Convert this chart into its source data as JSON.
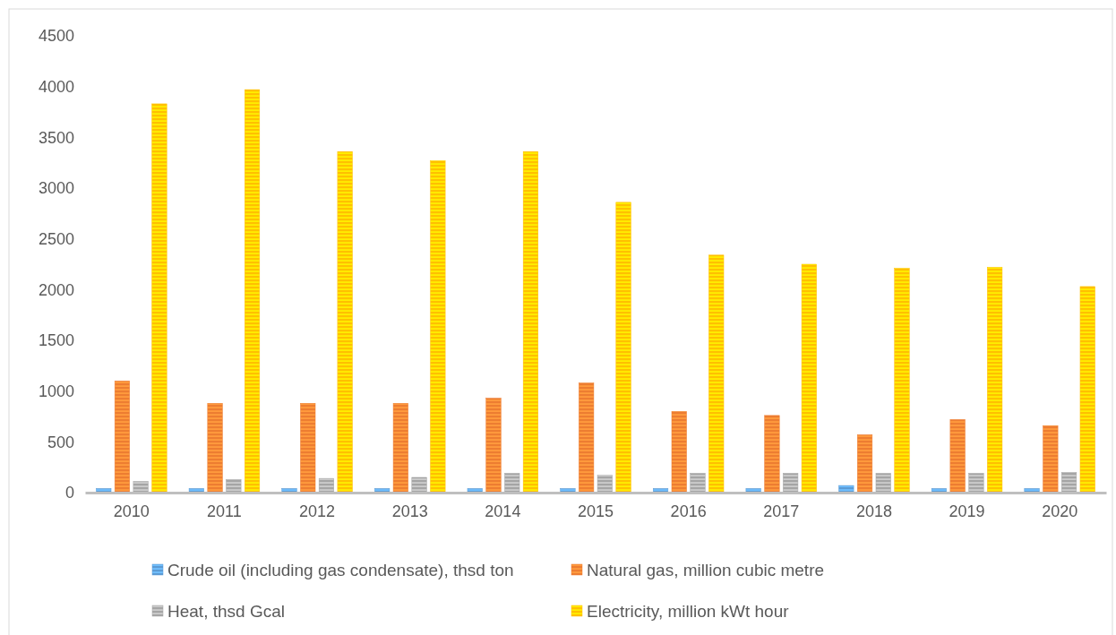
{
  "chart_data": {
    "type": "bar",
    "categories": [
      "2010",
      "2011",
      "2012",
      "2013",
      "2014",
      "2015",
      "2016",
      "2017",
      "2018",
      "2019",
      "2020"
    ],
    "series": [
      {
        "name": "Crude oil (including gas condensate), thsd ton",
        "color": "#5b9bd5",
        "values": [
          40,
          40,
          40,
          40,
          40,
          40,
          40,
          40,
          70,
          40,
          40
        ]
      },
      {
        "name": "Natural gas, million cubic metre",
        "color": "#ed7d31",
        "values": [
          1100,
          880,
          880,
          880,
          930,
          1080,
          800,
          760,
          570,
          720,
          660
        ]
      },
      {
        "name": "Heat, thsd  Gcal",
        "color": "#a5a5a5",
        "values": [
          110,
          130,
          140,
          150,
          190,
          170,
          190,
          190,
          190,
          190,
          200
        ]
      },
      {
        "name": "Electricity, million kWt hour",
        "color": "#ffc000",
        "values": [
          3830,
          3970,
          3360,
          3270,
          3360,
          2860,
          2340,
          2250,
          2210,
          2220,
          2030
        ]
      }
    ],
    "ylim": [
      0,
      4500
    ],
    "yticks": [
      0,
      500,
      1000,
      1500,
      2000,
      2500,
      3000,
      3500,
      4000,
      4500
    ],
    "grid": false,
    "legend": "bottom"
  }
}
